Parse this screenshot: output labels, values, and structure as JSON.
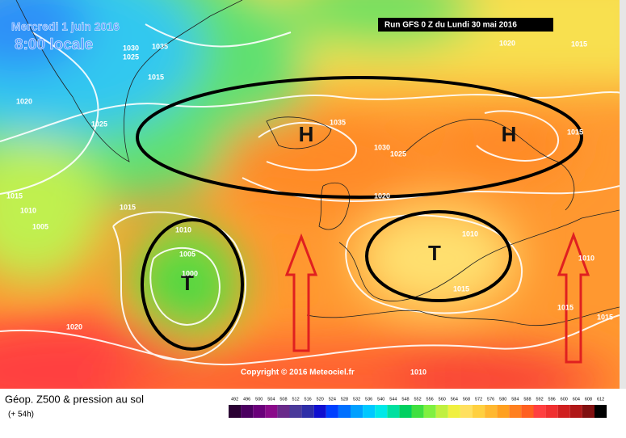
{
  "header": {
    "date": "Mercredi 1 juin 2016",
    "time": "8:00 locale",
    "run": "Run GFS 0 Z du Lundi 30 mai 2016"
  },
  "map": {
    "centers": [
      "H",
      "H",
      "T",
      "T"
    ],
    "isobar_labels": [
      "1030",
      "1025",
      "1035",
      "1015",
      "1020",
      "1025",
      "1015",
      "1010",
      "1005",
      "1015",
      "1010",
      "1005",
      "1000",
      "1020",
      "1035",
      "1030",
      "1025",
      "1020",
      "1020",
      "1015",
      "1015",
      "1010",
      "1015",
      "1010",
      "1015",
      "1015",
      "1010"
    ],
    "copyright": "Copyright © 2016 Meteociel.fr"
  },
  "legend": {
    "title": "Géop. Z500 & pression au sol",
    "lead": "(+ 54h)",
    "scale": [
      492,
      496,
      500,
      504,
      508,
      512,
      516,
      520,
      524,
      528,
      532,
      536,
      540,
      544,
      548,
      552,
      556,
      560,
      564,
      568,
      572,
      576,
      580,
      584,
      588,
      592,
      596,
      600,
      604,
      608,
      612
    ],
    "colors": [
      "#2a0033",
      "#4b0060",
      "#6a007a",
      "#8a0a8a",
      "#6a2a8a",
      "#4a3a9a",
      "#2e2ea8",
      "#1010d0",
      "#0040ff",
      "#0070ff",
      "#00a0ff",
      "#00c8ff",
      "#00e8e8",
      "#00e0a0",
      "#00d060",
      "#40e040",
      "#80f040",
      "#c0f040",
      "#f0f040",
      "#ffe060",
      "#ffd040",
      "#ffb830",
      "#ffa020",
      "#ff8020",
      "#ff6020",
      "#ff4040",
      "#f03030",
      "#d02020",
      "#b01818",
      "#801010",
      "#000000"
    ]
  }
}
